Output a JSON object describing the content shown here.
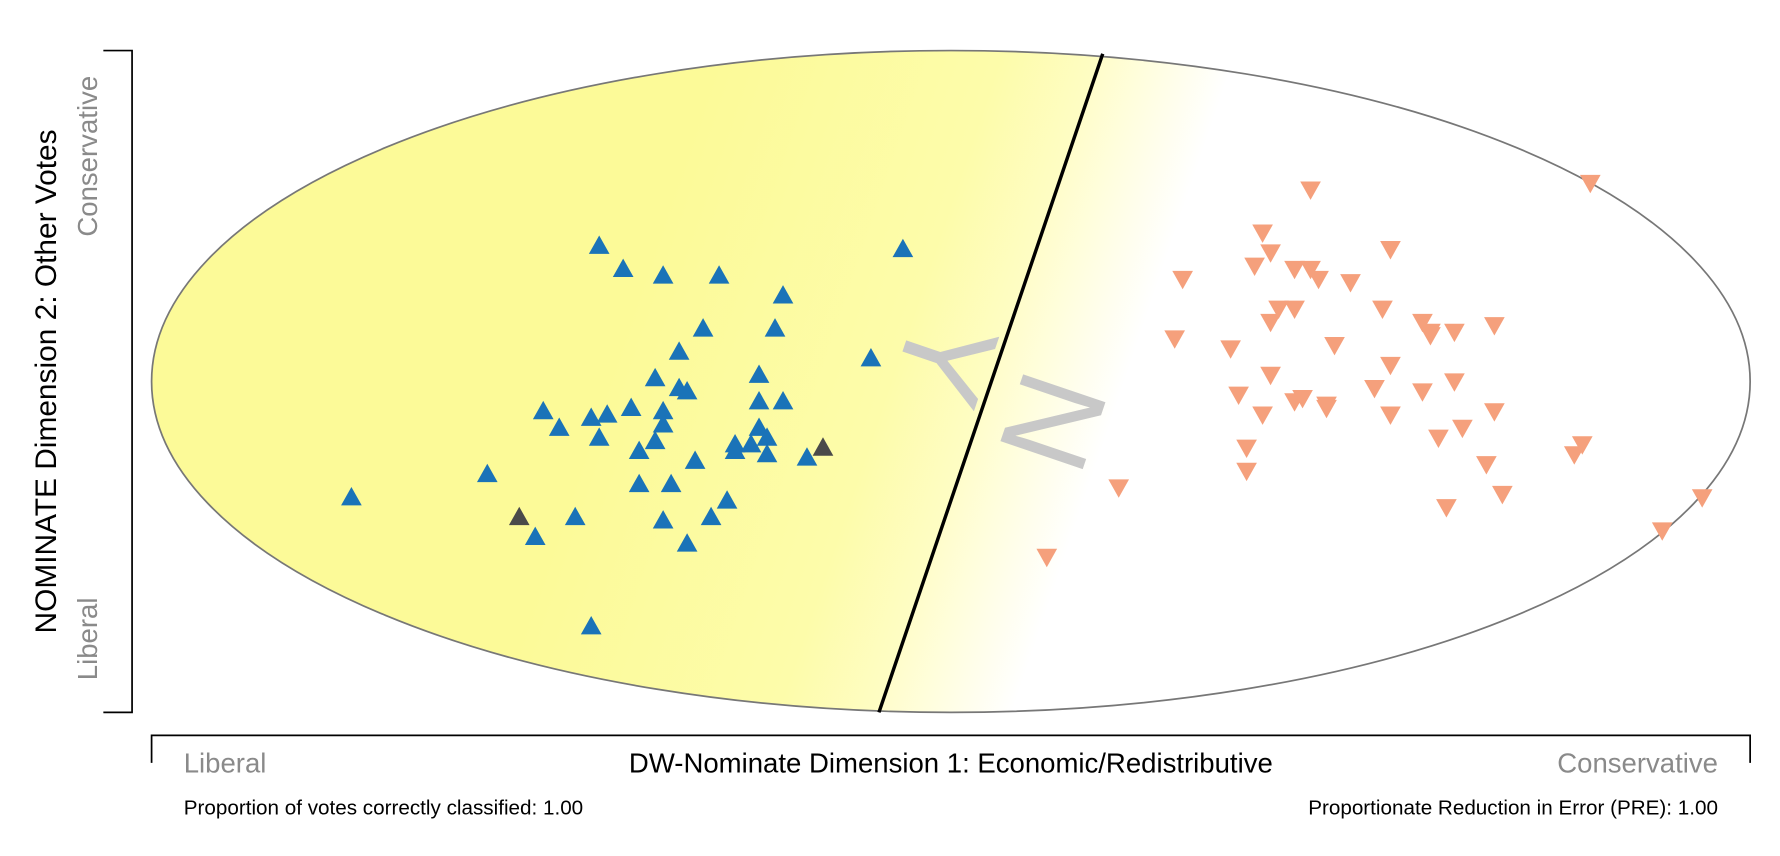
{
  "chart_data": {
    "type": "scatter",
    "xlabel": "DW-Nominate Dimension 1: Economic/Redistributive",
    "ylabel": "NOMINATE Dimension 2: Other Votes",
    "x_low_label": "Liberal",
    "x_high_label": "Conservative",
    "y_low_label": "Liberal",
    "y_high_label": "Conservative",
    "notes": [
      "Proportion of votes correctly classified: 1.00",
      "Proportionate Reduction in Error (PRE): 1.00"
    ],
    "annotations": [
      "Y",
      "N"
    ],
    "xlim": [
      -1,
      1
    ],
    "ylim": [
      -1,
      1
    ],
    "cutting_line": {
      "x": [
        0.19,
        -0.09
      ],
      "y": [
        0.99,
        -1.0
      ]
    },
    "series": [
      {
        "color": "#1a73b8",
        "marker": "triangle-up",
        "x": [
          -0.44,
          -0.41,
          -0.36,
          -0.29,
          -0.06,
          -0.21,
          -0.31,
          -0.22,
          -0.34,
          -0.1,
          -0.24,
          -0.37,
          -0.34,
          -0.33,
          -0.51,
          -0.4,
          -0.45,
          -0.43,
          -0.36,
          -0.24,
          -0.21,
          -0.49,
          -0.36,
          -0.24,
          -0.44,
          -0.37,
          -0.27,
          -0.25,
          -0.23,
          -0.23,
          -0.27,
          -0.39,
          -0.32,
          -0.18,
          -0.58,
          -0.39,
          -0.35,
          -0.75,
          -0.28,
          -0.47,
          -0.36,
          -0.3,
          -0.52,
          -0.33,
          -0.45
        ],
        "y": [
          0.41,
          0.34,
          0.32,
          0.32,
          0.4,
          0.26,
          0.16,
          0.16,
          0.09,
          0.07,
          0.02,
          0.01,
          -0.02,
          -0.03,
          -0.09,
          -0.08,
          -0.11,
          -0.1,
          -0.09,
          -0.06,
          -0.06,
          -0.14,
          -0.13,
          -0.14,
          -0.17,
          -0.18,
          -0.19,
          -0.19,
          -0.17,
          -0.22,
          -0.21,
          -0.21,
          -0.24,
          -0.23,
          -0.28,
          -0.31,
          -0.31,
          -0.35,
          -0.36,
          -0.41,
          -0.42,
          -0.41,
          -0.47,
          -0.49,
          -0.74
        ]
      },
      {
        "color": "#4a4a4a",
        "marker": "triangle-up",
        "x": [
          -0.54,
          -0.16
        ],
        "y": [
          -0.41,
          -0.2
        ]
      },
      {
        "color": "#f5a07c",
        "marker": "triangle-down",
        "x": [
          0.45,
          0.8,
          0.39,
          0.4,
          0.55,
          0.38,
          0.43,
          0.45,
          0.46,
          0.29,
          0.5,
          0.54,
          0.41,
          0.43,
          0.4,
          0.59,
          0.6,
          0.6,
          0.63,
          0.68,
          0.28,
          0.35,
          0.48,
          0.55,
          0.4,
          0.63,
          0.36,
          0.44,
          0.43,
          0.47,
          0.53,
          0.59,
          0.39,
          0.47,
          0.55,
          0.68,
          0.64,
          0.61,
          0.79,
          0.78,
          0.37,
          0.67,
          0.37,
          0.21,
          0.69,
          0.62,
          0.94,
          0.89,
          0.12
        ],
        "y": [
          0.58,
          0.6,
          0.45,
          0.39,
          0.4,
          0.35,
          0.34,
          0.34,
          0.31,
          0.31,
          0.3,
          0.22,
          0.22,
          0.22,
          0.18,
          0.18,
          0.15,
          0.14,
          0.15,
          0.17,
          0.13,
          0.1,
          0.11,
          0.05,
          0.02,
          0.0,
          -0.04,
          -0.05,
          -0.06,
          -0.07,
          -0.02,
          -0.03,
          -0.1,
          -0.08,
          -0.1,
          -0.09,
          -0.14,
          -0.17,
          -0.19,
          -0.22,
          -0.2,
          -0.25,
          -0.27,
          -0.32,
          -0.34,
          -0.38,
          -0.35,
          -0.45,
          -0.53
        ]
      }
    ]
  }
}
